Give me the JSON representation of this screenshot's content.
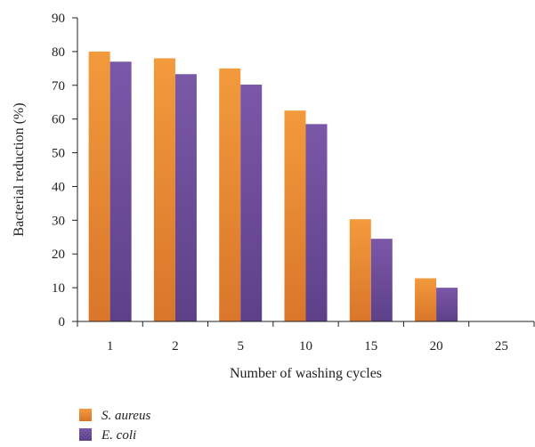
{
  "chart_data": {
    "type": "bar",
    "title": "",
    "xlabel": "Number of washing cycles",
    "ylabel": "Bacterial reduction (%)",
    "categories": [
      "1",
      "2",
      "5",
      "10",
      "15",
      "20",
      "25"
    ],
    "ylim": [
      0,
      90
    ],
    "yticks": [
      "0",
      "10",
      "20",
      "30",
      "40",
      "50",
      "60",
      "70",
      "80",
      "90"
    ],
    "grid": false,
    "legend_position": "bottom-left",
    "series": [
      {
        "name": "S. aureus",
        "color": "#E8832A",
        "values": [
          80,
          78,
          75,
          62.5,
          30.3,
          12.8,
          0
        ]
      },
      {
        "name": "E. coli",
        "color": "#6B4C9A",
        "values": [
          77,
          73.3,
          70.2,
          58.5,
          24.5,
          10,
          0
        ]
      }
    ]
  }
}
